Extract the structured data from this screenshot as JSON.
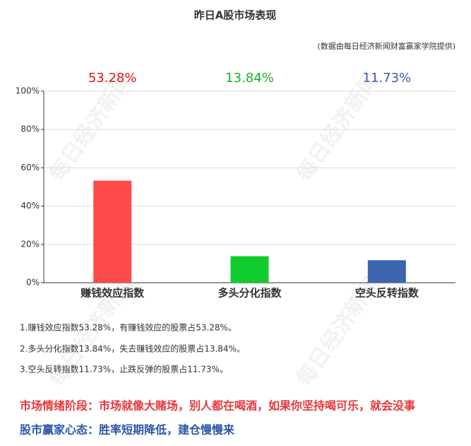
{
  "chart_data": {
    "type": "bar",
    "title": "昨日A股市场表现",
    "subtitle": "(数据由每日经济新闻财富赢家学院提供)",
    "categories": [
      "赚钱效应指数",
      "多头分化指数",
      "空头反转指数"
    ],
    "values": [
      53.28,
      13.84,
      11.73
    ],
    "value_labels": [
      "53.28%",
      "13.84%",
      "11.73%"
    ],
    "colors": [
      "#ff4b4b",
      "#11cc2e",
      "#3c66ae"
    ],
    "label_colors": [
      "#e8101a",
      "#1aae2c",
      "#3a5ea8"
    ],
    "ylim": [
      0,
      100
    ],
    "yticks": [
      {
        "value": 0,
        "label": "0%"
      },
      {
        "value": 20,
        "label": "20%"
      },
      {
        "value": 40,
        "label": "40%"
      },
      {
        "value": 60,
        "label": "60%"
      },
      {
        "value": 80,
        "label": "80%"
      },
      {
        "value": 100,
        "label": "100%"
      }
    ],
    "grid": true
  },
  "watermark": "每日经济新闻",
  "notes": [
    "1.赚钱效应指数53.28%，有赚钱效应的股票占53.28%。",
    "2.多头分化指数13.84%，失去赚钱效应的股票占13.84%。",
    "3.空头反转指数11.73%，止跌反弹的股票占11.73%。"
  ],
  "market_stage": "市场情绪阶段：市场就像大赌场，别人都在喝酒，如果你坚持喝可乐，就会没事",
  "investor_mindset": "股市赢家心态：胜率短期降低，建仓慢慢来"
}
